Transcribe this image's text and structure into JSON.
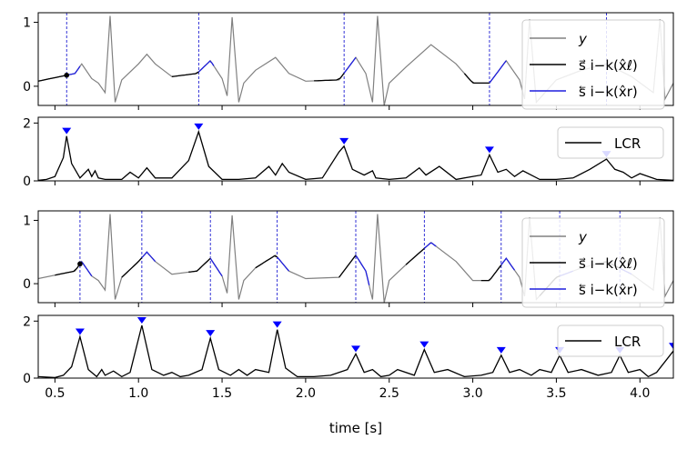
{
  "figure": {
    "xlabel": "time [s]"
  },
  "chart_data": [
    {
      "type": "line",
      "panel": "signal-1",
      "xlim": [
        0.4,
        4.2
      ],
      "ylim": [
        -0.3,
        1.15
      ],
      "yticks": [
        0,
        1
      ],
      "xticks": [
        0.5,
        1.0,
        1.5,
        2.0,
        2.5,
        3.0,
        3.5,
        4.0
      ],
      "xtick_labels_visible": false,
      "grid": false,
      "legend_position": "top-right",
      "legend": [
        {
          "label": "y",
          "color": "#808080"
        },
        {
          "label": "s⃗ i−k(x̂ℓ)",
          "color": "#000000"
        },
        {
          "label": "s⃖ i−k(x̂r)",
          "color": "#1f1fdd"
        }
      ],
      "markers_x": [
        0.57,
        1.36,
        2.23,
        3.1,
        3.8
      ],
      "segments_black": [
        [
          0.4,
          0.57
        ],
        [
          1.2,
          1.36
        ],
        [
          2.05,
          2.23
        ],
        [
          2.95,
          3.1
        ]
      ],
      "segments_blue": [
        [
          0.57,
          0.65
        ],
        [
          1.36,
          1.45
        ],
        [
          2.23,
          2.3
        ],
        [
          3.1,
          3.2
        ]
      ],
      "series": [
        {
          "name": "y",
          "x": [
            0.4,
            0.62,
            0.66,
            0.72,
            0.76,
            0.8,
            0.83,
            0.86,
            0.9,
            1.0,
            1.05,
            1.1,
            1.2,
            1.35,
            1.43,
            1.5,
            1.53,
            1.56,
            1.6,
            1.63,
            1.7,
            1.82,
            1.9,
            2.0,
            2.2,
            2.3,
            2.36,
            2.4,
            2.43,
            2.47,
            2.5,
            2.6,
            2.75,
            2.9,
            3.0,
            3.1,
            3.2,
            3.28,
            3.31,
            3.34,
            3.38,
            3.5,
            3.65,
            3.8,
            3.95,
            4.08,
            4.12,
            4.15,
            4.2
          ],
          "y": [
            0.08,
            0.2,
            0.35,
            0.12,
            0.05,
            -0.1,
            1.1,
            -0.25,
            0.1,
            0.35,
            0.5,
            0.35,
            0.15,
            0.2,
            0.4,
            0.12,
            -0.15,
            1.08,
            -0.25,
            0.05,
            0.25,
            0.45,
            0.2,
            0.08,
            0.1,
            0.45,
            0.2,
            -0.25,
            1.1,
            -0.3,
            0.05,
            0.3,
            0.65,
            0.35,
            0.05,
            0.05,
            0.4,
            0.1,
            -0.2,
            1.05,
            -0.25,
            0.1,
            0.25,
            0.35,
            0.15,
            -0.1,
            1.05,
            -0.2,
            0.05
          ]
        }
      ]
    },
    {
      "type": "line",
      "panel": "lcr-1",
      "xlim": [
        0.4,
        4.2
      ],
      "ylim": [
        0,
        2.2
      ],
      "yticks": [
        0,
        2
      ],
      "xticks": [
        0.5,
        1.0,
        1.5,
        2.0,
        2.5,
        3.0,
        3.5,
        4.0
      ],
      "xtick_labels_visible": false,
      "legend_position": "top-right",
      "legend": [
        {
          "label": "LCR",
          "color": "#000000"
        }
      ],
      "peak_markers": [
        {
          "x": 0.57,
          "y": 1.55
        },
        {
          "x": 1.36,
          "y": 1.7
        },
        {
          "x": 2.23,
          "y": 1.2
        },
        {
          "x": 3.1,
          "y": 0.9
        },
        {
          "x": 3.8,
          "y": 0.75
        }
      ],
      "series": [
        {
          "name": "LCR",
          "x": [
            0.4,
            0.45,
            0.5,
            0.55,
            0.57,
            0.6,
            0.65,
            0.7,
            0.72,
            0.74,
            0.76,
            0.8,
            0.9,
            0.95,
            1.0,
            1.05,
            1.1,
            1.2,
            1.3,
            1.36,
            1.42,
            1.5,
            1.6,
            1.7,
            1.78,
            1.82,
            1.86,
            1.9,
            2.0,
            2.1,
            2.2,
            2.23,
            2.28,
            2.35,
            2.4,
            2.42,
            2.5,
            2.6,
            2.68,
            2.72,
            2.8,
            2.9,
            3.05,
            3.1,
            3.15,
            3.2,
            3.25,
            3.3,
            3.4,
            3.5,
            3.6,
            3.7,
            3.8,
            3.85,
            3.9,
            3.95,
            4.0,
            4.1,
            4.2
          ],
          "y": [
            0.02,
            0.05,
            0.15,
            0.8,
            1.55,
            0.6,
            0.1,
            0.4,
            0.15,
            0.35,
            0.1,
            0.05,
            0.05,
            0.3,
            0.1,
            0.45,
            0.1,
            0.1,
            0.7,
            1.7,
            0.5,
            0.05,
            0.05,
            0.1,
            0.5,
            0.2,
            0.6,
            0.3,
            0.05,
            0.1,
            1.0,
            1.2,
            0.4,
            0.2,
            0.35,
            0.1,
            0.05,
            0.1,
            0.45,
            0.2,
            0.5,
            0.05,
            0.2,
            0.9,
            0.3,
            0.4,
            0.15,
            0.35,
            0.05,
            0.05,
            0.1,
            0.4,
            0.75,
            0.4,
            0.3,
            0.1,
            0.25,
            0.05,
            0.02
          ]
        }
      ]
    },
    {
      "type": "line",
      "panel": "signal-2",
      "xlim": [
        0.4,
        4.2
      ],
      "ylim": [
        -0.3,
        1.15
      ],
      "yticks": [
        0,
        1
      ],
      "xticks": [
        0.5,
        1.0,
        1.5,
        2.0,
        2.5,
        3.0,
        3.5,
        4.0
      ],
      "xtick_labels_visible": false,
      "grid": false,
      "legend_position": "top-right",
      "legend": [
        {
          "label": "y",
          "color": "#808080"
        },
        {
          "label": "s⃗ i−k(x̂ℓ)",
          "color": "#000000"
        },
        {
          "label": "s⃖ i−k(x̂r)",
          "color": "#1f1fdd"
        }
      ],
      "markers_x": [
        0.65,
        1.02,
        1.43,
        1.83,
        2.3,
        2.71,
        3.17,
        3.52,
        3.88,
        4.2
      ],
      "segments_black": [
        [
          0.5,
          0.65
        ],
        [
          0.9,
          1.02
        ],
        [
          1.3,
          1.43
        ],
        [
          1.7,
          1.83
        ],
        [
          2.2,
          2.3
        ],
        [
          2.6,
          2.71
        ],
        [
          3.05,
          3.17
        ],
        [
          3.4,
          3.52
        ],
        [
          3.78,
          3.88
        ]
      ],
      "segments_blue": [
        [
          0.65,
          0.72
        ],
        [
          1.02,
          1.1
        ],
        [
          1.43,
          1.5
        ],
        [
          1.83,
          1.9
        ],
        [
          2.3,
          2.38
        ],
        [
          2.71,
          2.78
        ],
        [
          3.17,
          3.25
        ],
        [
          3.52,
          3.6
        ],
        [
          3.88,
          3.95
        ]
      ],
      "series": [
        {
          "name": "y",
          "x": [
            0.4,
            0.62,
            0.66,
            0.72,
            0.76,
            0.8,
            0.83,
            0.86,
            0.9,
            1.0,
            1.05,
            1.1,
            1.2,
            1.35,
            1.43,
            1.5,
            1.53,
            1.56,
            1.6,
            1.63,
            1.7,
            1.82,
            1.9,
            2.0,
            2.2,
            2.3,
            2.36,
            2.4,
            2.43,
            2.47,
            2.5,
            2.6,
            2.75,
            2.9,
            3.0,
            3.1,
            3.2,
            3.28,
            3.31,
            3.34,
            3.38,
            3.5,
            3.65,
            3.8,
            3.95,
            4.08,
            4.12,
            4.15,
            4.2
          ],
          "y": [
            0.08,
            0.2,
            0.35,
            0.12,
            0.05,
            -0.1,
            1.1,
            -0.25,
            0.1,
            0.35,
            0.5,
            0.35,
            0.15,
            0.2,
            0.4,
            0.12,
            -0.15,
            1.08,
            -0.25,
            0.05,
            0.25,
            0.45,
            0.2,
            0.08,
            0.1,
            0.45,
            0.2,
            -0.25,
            1.1,
            -0.3,
            0.05,
            0.3,
            0.65,
            0.35,
            0.05,
            0.05,
            0.4,
            0.1,
            -0.2,
            1.05,
            -0.25,
            0.1,
            0.25,
            0.35,
            0.15,
            -0.1,
            1.05,
            -0.2,
            0.05
          ]
        }
      ]
    },
    {
      "type": "line",
      "panel": "lcr-2",
      "xlim": [
        0.4,
        4.2
      ],
      "ylim": [
        0,
        2.2
      ],
      "yticks": [
        0,
        2
      ],
      "xticks": [
        0.5,
        1.0,
        1.5,
        2.0,
        2.5,
        3.0,
        3.5,
        4.0
      ],
      "xtick_labels": [
        "0.5",
        "1.0",
        "1.5",
        "2.0",
        "2.5",
        "3.0",
        "3.5",
        "4.0"
      ],
      "legend_position": "top-right",
      "legend": [
        {
          "label": "LCR",
          "color": "#000000"
        }
      ],
      "peak_markers": [
        {
          "x": 0.65,
          "y": 1.45
        },
        {
          "x": 1.02,
          "y": 1.85
        },
        {
          "x": 1.43,
          "y": 1.4
        },
        {
          "x": 1.83,
          "y": 1.7
        },
        {
          "x": 2.3,
          "y": 0.85
        },
        {
          "x": 2.71,
          "y": 1.0
        },
        {
          "x": 3.17,
          "y": 0.8
        },
        {
          "x": 3.52,
          "y": 0.8
        },
        {
          "x": 3.88,
          "y": 0.8
        },
        {
          "x": 4.2,
          "y": 0.95
        }
      ],
      "series": [
        {
          "name": "LCR",
          "x": [
            0.4,
            0.5,
            0.55,
            0.6,
            0.65,
            0.7,
            0.75,
            0.78,
            0.8,
            0.85,
            0.9,
            0.95,
            1.02,
            1.08,
            1.15,
            1.2,
            1.25,
            1.3,
            1.38,
            1.43,
            1.48,
            1.55,
            1.6,
            1.65,
            1.7,
            1.78,
            1.83,
            1.88,
            1.95,
            2.05,
            2.15,
            2.25,
            2.3,
            2.35,
            2.4,
            2.45,
            2.5,
            2.55,
            2.65,
            2.71,
            2.77,
            2.85,
            2.95,
            3.05,
            3.12,
            3.17,
            3.22,
            3.28,
            3.35,
            3.4,
            3.47,
            3.52,
            3.57,
            3.65,
            3.75,
            3.83,
            3.88,
            3.93,
            4.0,
            4.05,
            4.1,
            4.2
          ],
          "y": [
            0.05,
            0.02,
            0.1,
            0.4,
            1.45,
            0.3,
            0.05,
            0.3,
            0.1,
            0.25,
            0.05,
            0.2,
            1.85,
            0.3,
            0.1,
            0.2,
            0.05,
            0.1,
            0.3,
            1.4,
            0.3,
            0.1,
            0.3,
            0.1,
            0.3,
            0.2,
            1.7,
            0.35,
            0.05,
            0.05,
            0.1,
            0.3,
            0.85,
            0.2,
            0.3,
            0.05,
            0.1,
            0.3,
            0.1,
            1.0,
            0.2,
            0.3,
            0.05,
            0.1,
            0.2,
            0.8,
            0.2,
            0.3,
            0.1,
            0.3,
            0.2,
            0.8,
            0.2,
            0.3,
            0.1,
            0.2,
            0.8,
            0.2,
            0.3,
            0.05,
            0.2,
            0.95
          ]
        }
      ]
    }
  ]
}
